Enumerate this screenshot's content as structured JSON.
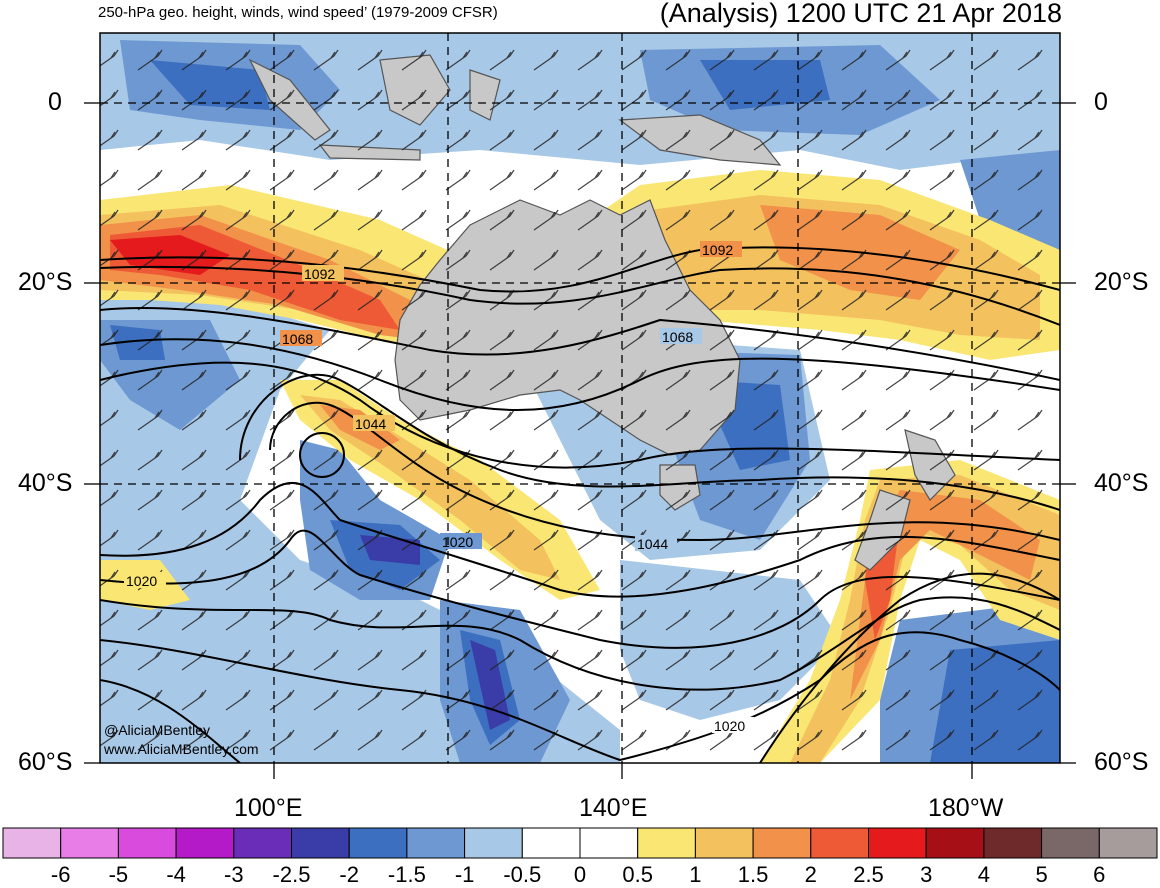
{
  "header": {
    "left_title": "250-hPa geo. height, winds, wind speed’ (1979-2009 CFSR)",
    "right_title": "(Analysis) 1200 UTC 21 Apr 2018"
  },
  "lat_labels": {
    "eq": "0",
    "s20": "20°S",
    "s40": "40°S",
    "s60": "60°S"
  },
  "lon_labels": {
    "e100": "100°E",
    "e140": "140°E",
    "w180": "180°W"
  },
  "contour_labels": [
    "1092",
    "1092",
    "1068",
    "1068",
    "1044",
    "1044",
    "1020",
    "1020",
    "1020"
  ],
  "credits": {
    "handle": "@AliciaMBentley",
    "site": "www.AliciaMBentley.com"
  },
  "colorbar": {
    "labels": [
      "-6",
      "-5",
      "-4",
      "-3",
      "-2.5",
      "-2",
      "-1.5",
      "-1",
      "-0.5",
      "0",
      "0.5",
      "1",
      "1.5",
      "2",
      "2.5",
      "3",
      "4",
      "5",
      "6"
    ],
    "colors": [
      "#e8b4e8",
      "#e87de8",
      "#d84bdc",
      "#b51ac8",
      "#6a2db8",
      "#3a3ca8",
      "#3d6fc0",
      "#6d98d2",
      "#a7c8e6",
      "#ffffff",
      "#ffffff",
      "#fae673",
      "#f3c25f",
      "#f1914a",
      "#ee5a35",
      "#e41a1c",
      "#a50f15",
      "#6e2a2a",
      "#7a6868",
      "#a69c9c"
    ]
  }
}
